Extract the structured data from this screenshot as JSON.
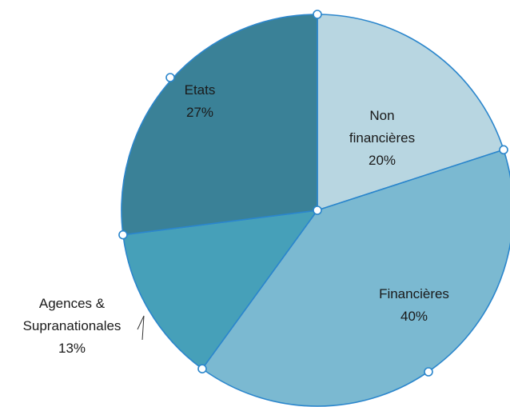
{
  "chart_data": {
    "type": "pie",
    "categories": [
      "Non financières",
      "Financières",
      "Agences & Supranationales",
      "Etats"
    ],
    "values": [
      20,
      40,
      13,
      27
    ],
    "value_labels": [
      "20%",
      "40%",
      "13%",
      "27%"
    ],
    "colors": [
      "#b8d6e1",
      "#7bb9d1",
      "#46a0b9",
      "#3a8197"
    ]
  }
}
